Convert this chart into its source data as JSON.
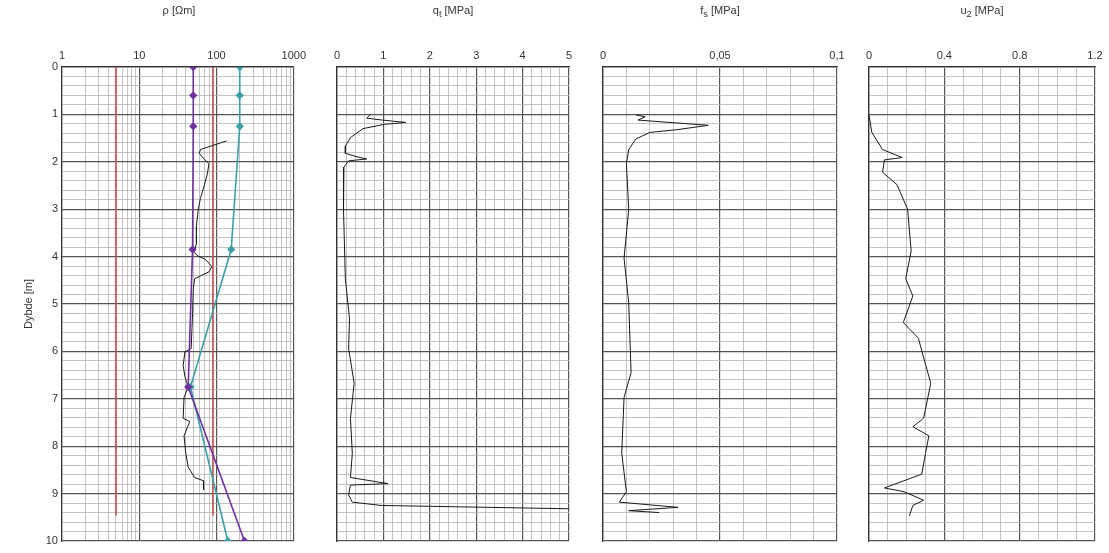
{
  "chart_data": [
    {
      "type": "line",
      "xlabel": "ρ [Ωm]",
      "ylabel": "Dybde [m]",
      "log": "x",
      "grid": true,
      "xlim": [
        1,
        1000
      ],
      "ylim": [
        10,
        0
      ],
      "xticks": [
        1,
        {
          "value": 2,
          "label": null
        },
        {
          "value": 3,
          "label": null
        },
        {
          "value": 4,
          "label": null
        },
        {
          "value": 5,
          "label": null
        },
        {
          "value": 6,
          "label": null
        },
        {
          "value": 7,
          "label": null
        },
        {
          "value": 8,
          "label": null
        },
        {
          "value": 9,
          "label": null
        },
        10,
        {
          "value": 20,
          "label": null
        },
        {
          "value": 30,
          "label": null
        },
        {
          "value": 40,
          "label": null
        },
        {
          "value": 50,
          "label": null
        },
        {
          "value": 60,
          "label": null
        },
        {
          "value": 70,
          "label": null
        },
        {
          "value": 80,
          "label": null
        },
        {
          "value": 90,
          "label": null
        },
        100,
        {
          "value": 200,
          "label": null
        },
        {
          "value": 300,
          "label": null
        },
        {
          "value": 400,
          "label": null
        },
        {
          "value": 500,
          "label": null
        },
        {
          "value": 600,
          "label": null
        },
        {
          "value": 700,
          "label": null
        },
        {
          "value": 800,
          "label": null
        },
        {
          "value": 900,
          "label": null
        },
        1000
      ],
      "yticks": [
        0,
        {
          "value": 0.2,
          "label": null
        },
        {
          "value": 0.4,
          "label": null
        },
        {
          "value": 0.6,
          "label": null
        },
        {
          "value": 0.8,
          "label": null
        },
        1,
        {
          "value": 1.2,
          "label": null
        },
        {
          "value": 1.4,
          "label": null
        },
        {
          "value": 1.6,
          "label": null
        },
        {
          "value": 1.8,
          "label": null
        },
        2,
        {
          "value": 2.2,
          "label": null
        },
        {
          "value": 2.4,
          "label": null
        },
        {
          "value": 2.6,
          "label": null
        },
        {
          "value": 2.8,
          "label": null
        },
        3,
        {
          "value": 3.2,
          "label": null
        },
        {
          "value": 3.4,
          "label": null
        },
        {
          "value": 3.6,
          "label": null
        },
        {
          "value": 3.8,
          "label": null
        },
        4,
        {
          "value": 4.2,
          "label": null
        },
        {
          "value": 4.4,
          "label": null
        },
        {
          "value": 4.6,
          "label": null
        },
        {
          "value": 4.8,
          "label": null
        },
        5,
        {
          "value": 5.2,
          "label": null
        },
        {
          "value": 5.4,
          "label": null
        },
        {
          "value": 5.6,
          "label": null
        },
        {
          "value": 5.8,
          "label": null
        },
        6,
        {
          "value": 6.2,
          "label": null
        },
        {
          "value": 6.4,
          "label": null
        },
        {
          "value": 6.6,
          "label": null
        },
        {
          "value": 6.8,
          "label": null
        },
        7,
        {
          "value": 7.2,
          "label": null
        },
        {
          "value": 7.4,
          "label": null
        },
        {
          "value": 7.6,
          "label": null
        },
        {
          "value": 7.8,
          "label": null
        },
        8,
        {
          "value": 8.2,
          "label": null
        },
        {
          "value": 8.4,
          "label": null
        },
        {
          "value": 8.6,
          "label": null
        },
        {
          "value": 8.8,
          "label": null
        },
        9,
        {
          "value": 9.2,
          "label": null
        },
        {
          "value": 9.4,
          "label": null
        },
        {
          "value": 9.6,
          "label": null
        },
        {
          "value": 9.8,
          "label": null
        },
        10
      ],
      "series": [
        {
          "color": "#c0504d",
          "marker": "none",
          "x": [
            5,
            5
          ],
          "values": [
            0,
            9.45
          ]
        },
        {
          "color": "#c0504d",
          "marker": "none",
          "x": [
            90,
            90
          ],
          "values": [
            0,
            9.45
          ]
        },
        {
          "color": "#1a1a1a",
          "marker": "none",
          "x": [
            135,
            62,
            60,
            68,
            80,
            76,
            68,
            62,
            58,
            55,
            55,
            51,
            58,
            72,
            87,
            80,
            65,
            52,
            50,
            49,
            47,
            39,
            37,
            39,
            43,
            38,
            37,
            45,
            38,
            40,
            43,
            52,
            68,
            68
          ],
          "values": [
            1.56,
            1.74,
            1.82,
            1.93,
            2.04,
            2.26,
            2.55,
            2.77,
            3.0,
            3.36,
            3.73,
            3.91,
            3.99,
            4.06,
            4.21,
            4.32,
            4.39,
            4.47,
            4.69,
            5.2,
            5.94,
            6.01,
            6.3,
            6.53,
            6.75,
            6.97,
            7.41,
            7.48,
            7.78,
            8.15,
            8.44,
            8.66,
            8.73,
            8.92
          ]
        },
        {
          "color": "#3a9fa8",
          "marker": "diamond",
          "x": [
            200,
            200,
            200,
            155,
            46,
            140
          ],
          "values": [
            0,
            0.6,
            1.25,
            3.85,
            6.75,
            10
          ]
        },
        {
          "color": "#7030a0",
          "marker": "diamond",
          "x": [
            50,
            50,
            50,
            49,
            43,
            230
          ],
          "values": [
            0,
            0.6,
            1.25,
            3.85,
            6.75,
            10
          ]
        }
      ]
    },
    {
      "type": "line",
      "xlabel": "q$_{t}$ [MPa]",
      "tick_labels": "x",
      "grid": true,
      "xlim": [
        0,
        5
      ],
      "ylim": [
        10,
        0
      ],
      "xticks": [
        0,
        {
          "value": 0.2,
          "label": null
        },
        {
          "value": 0.4,
          "label": null
        },
        {
          "value": 0.6,
          "label": null
        },
        {
          "value": 0.8,
          "label": null
        },
        1,
        {
          "value": 1.2,
          "label": null
        },
        {
          "value": 1.4,
          "label": null
        },
        {
          "value": 1.6,
          "label": null
        },
        {
          "value": 1.8,
          "label": null
        },
        2,
        {
          "value": 2.2,
          "label": null
        },
        {
          "value": 2.4,
          "label": null
        },
        {
          "value": 2.6,
          "label": null
        },
        {
          "value": 2.8,
          "label": null
        },
        3,
        {
          "value": 3.2,
          "label": null
        },
        {
          "value": 3.4,
          "label": null
        },
        {
          "value": 3.6,
          "label": null
        },
        {
          "value": 3.8,
          "label": null
        },
        4,
        {
          "value": 4.2,
          "label": null
        },
        {
          "value": 4.4,
          "label": null
        },
        {
          "value": 4.6,
          "label": null
        },
        {
          "value": 4.8,
          "label": null
        },
        5
      ],
      "yticks": [
        0,
        {
          "value": 0.2,
          "label": null
        },
        {
          "value": 0.4,
          "label": null
        },
        {
          "value": 0.6,
          "label": null
        },
        {
          "value": 0.8,
          "label": null
        },
        1,
        {
          "value": 1.2,
          "label": null
        },
        {
          "value": 1.4,
          "label": null
        },
        {
          "value": 1.6,
          "label": null
        },
        {
          "value": 1.8,
          "label": null
        },
        2,
        {
          "value": 2.2,
          "label": null
        },
        {
          "value": 2.4,
          "label": null
        },
        {
          "value": 2.6,
          "label": null
        },
        {
          "value": 2.8,
          "label": null
        },
        3,
        {
          "value": 3.2,
          "label": null
        },
        {
          "value": 3.4,
          "label": null
        },
        {
          "value": 3.6,
          "label": null
        },
        {
          "value": 3.8,
          "label": null
        },
        4,
        {
          "value": 4.2,
          "label": null
        },
        {
          "value": 4.4,
          "label": null
        },
        {
          "value": 4.6,
          "label": null
        },
        {
          "value": 4.8,
          "label": null
        },
        5,
        {
          "value": 5.2,
          "label": null
        },
        {
          "value": 5.4,
          "label": null
        },
        {
          "value": 5.6,
          "label": null
        },
        {
          "value": 5.8,
          "label": null
        },
        6,
        {
          "value": 6.2,
          "label": null
        },
        {
          "value": 6.4,
          "label": null
        },
        {
          "value": 6.6,
          "label": null
        },
        {
          "value": 6.8,
          "label": null
        },
        7,
        {
          "value": 7.2,
          "label": null
        },
        {
          "value": 7.4,
          "label": null
        },
        {
          "value": 7.6,
          "label": null
        },
        {
          "value": 7.8,
          "label": null
        },
        8,
        {
          "value": 8.2,
          "label": null
        },
        {
          "value": 8.4,
          "label": null
        },
        {
          "value": 8.6,
          "label": null
        },
        {
          "value": 8.8,
          "label": null
        },
        9,
        {
          "value": 9.2,
          "label": null
        },
        {
          "value": 9.4,
          "label": null
        },
        {
          "value": 9.6,
          "label": null
        },
        {
          "value": 9.8,
          "label": null
        },
        10
      ],
      "series": [
        {
          "color": "#1a1a1a",
          "marker": "none",
          "x": [
            0.72,
            0.64,
            0.98,
            1.48,
            1.02,
            0.56,
            0.29,
            0.18,
            0.18,
            0.41,
            0.64,
            0.25,
            0.15,
            0.14,
            0.18,
            0.27,
            0.25,
            0.37,
            0.29,
            0.33,
            0.29,
            1.1,
            0.29,
            0.25,
            0.33,
            0.95,
            5.0
          ],
          "values": [
            1.0,
            1.08,
            1.12,
            1.17,
            1.21,
            1.3,
            1.49,
            1.67,
            1.82,
            1.89,
            1.94,
            1.98,
            2.11,
            3.0,
            4.47,
            5.31,
            5.94,
            6.67,
            7.41,
            8.15,
            8.66,
            8.79,
            8.82,
            9.03,
            9.18,
            9.25,
            9.32
          ]
        }
      ]
    },
    {
      "type": "line",
      "xlabel": "f$_{s}$ [MPa]",
      "tick_labels": "x",
      "grid": true,
      "xlim": [
        0,
        0.1
      ],
      "ylim": [
        10,
        0
      ],
      "xticks": [
        0,
        {
          "value": 0.01,
          "label": null
        },
        {
          "value": 0.02,
          "label": null
        },
        {
          "value": 0.03,
          "label": null
        },
        {
          "value": 0.04,
          "label": null
        },
        {
          "value": 0.05,
          "label": "0,05"
        },
        {
          "value": 0.06,
          "label": null
        },
        {
          "value": 0.07,
          "label": null
        },
        {
          "value": 0.08,
          "label": null
        },
        {
          "value": 0.09,
          "label": null
        },
        {
          "value": 0.1,
          "label": "0,1"
        }
      ],
      "yticks": [
        0,
        {
          "value": 0.2,
          "label": null
        },
        {
          "value": 0.4,
          "label": null
        },
        {
          "value": 0.6,
          "label": null
        },
        {
          "value": 0.8,
          "label": null
        },
        1,
        {
          "value": 1.2,
          "label": null
        },
        {
          "value": 1.4,
          "label": null
        },
        {
          "value": 1.6,
          "label": null
        },
        {
          "value": 1.8,
          "label": null
        },
        2,
        {
          "value": 2.2,
          "label": null
        },
        {
          "value": 2.4,
          "label": null
        },
        {
          "value": 2.6,
          "label": null
        },
        {
          "value": 2.8,
          "label": null
        },
        3,
        {
          "value": 3.2,
          "label": null
        },
        {
          "value": 3.4,
          "label": null
        },
        {
          "value": 3.6,
          "label": null
        },
        {
          "value": 3.8,
          "label": null
        },
        4,
        {
          "value": 4.2,
          "label": null
        },
        {
          "value": 4.4,
          "label": null
        },
        {
          "value": 4.6,
          "label": null
        },
        {
          "value": 4.8,
          "label": null
        },
        5,
        {
          "value": 5.2,
          "label": null
        },
        {
          "value": 5.4,
          "label": null
        },
        {
          "value": 5.6,
          "label": null
        },
        {
          "value": 5.8,
          "label": null
        },
        6,
        {
          "value": 6.2,
          "label": null
        },
        {
          "value": 6.4,
          "label": null
        },
        {
          "value": 6.6,
          "label": null
        },
        {
          "value": 6.8,
          "label": null
        },
        7,
        {
          "value": 7.2,
          "label": null
        },
        {
          "value": 7.4,
          "label": null
        },
        {
          "value": 7.6,
          "label": null
        },
        {
          "value": 7.8,
          "label": null
        },
        8,
        {
          "value": 8.2,
          "label": null
        },
        {
          "value": 8.4,
          "label": null
        },
        {
          "value": 8.6,
          "label": null
        },
        {
          "value": 8.8,
          "label": null
        },
        9,
        {
          "value": 9.2,
          "label": null
        },
        {
          "value": 9.4,
          "label": null
        },
        {
          "value": 9.6,
          "label": null
        },
        {
          "value": 9.8,
          "label": null
        },
        10
      ],
      "series": [
        {
          "color": "#1a1a1a",
          "marker": "none",
          "x": [
            0.014,
            0.018,
            0.015,
            0.045,
            0.032,
            0.02,
            0.014,
            0.011,
            0.01,
            0.011,
            0.009,
            0.011,
            0.012,
            0.009,
            0.008,
            0.01,
            0.007,
            0.032,
            0.011,
            0.024
          ],
          "values": [
            1.01,
            1.05,
            1.12,
            1.23,
            1.32,
            1.38,
            1.52,
            1.74,
            2.04,
            3.0,
            4.03,
            4.98,
            6.45,
            6.97,
            8.15,
            8.96,
            9.18,
            9.29,
            9.36,
            9.4
          ]
        }
      ]
    },
    {
      "type": "line",
      "xlabel": "u$_{2}$ [MPa]",
      "tick_labels": "x",
      "grid": true,
      "xlim": [
        0,
        1.2
      ],
      "ylim": [
        10,
        0
      ],
      "xticks": [
        0,
        {
          "value": 0.1,
          "label": null
        },
        {
          "value": 0.2,
          "label": null
        },
        {
          "value": 0.3,
          "label": null
        },
        0.4,
        {
          "value": 0.5,
          "label": null
        },
        {
          "value": 0.6,
          "label": null
        },
        {
          "value": 0.7,
          "label": null
        },
        0.8,
        {
          "value": 0.9,
          "label": null
        },
        {
          "value": 1.0,
          "label": null
        },
        {
          "value": 1.1,
          "label": null
        },
        1.2
      ],
      "yticks": [
        0,
        {
          "value": 0.2,
          "label": null
        },
        {
          "value": 0.4,
          "label": null
        },
        {
          "value": 0.6,
          "label": null
        },
        {
          "value": 0.8,
          "label": null
        },
        1,
        {
          "value": 1.2,
          "label": null
        },
        {
          "value": 1.4,
          "label": null
        },
        {
          "value": 1.6,
          "label": null
        },
        {
          "value": 1.8,
          "label": null
        },
        2,
        {
          "value": 2.2,
          "label": null
        },
        {
          "value": 2.4,
          "label": null
        },
        {
          "value": 2.6,
          "label": null
        },
        {
          "value": 2.8,
          "label": null
        },
        3,
        {
          "value": 3.2,
          "label": null
        },
        {
          "value": 3.4,
          "label": null
        },
        {
          "value": 3.6,
          "label": null
        },
        {
          "value": 3.8,
          "label": null
        },
        4,
        {
          "value": 4.2,
          "label": null
        },
        {
          "value": 4.4,
          "label": null
        },
        {
          "value": 4.6,
          "label": null
        },
        {
          "value": 4.8,
          "label": null
        },
        5,
        {
          "value": 5.2,
          "label": null
        },
        {
          "value": 5.4,
          "label": null
        },
        {
          "value": 5.6,
          "label": null
        },
        {
          "value": 5.8,
          "label": null
        },
        6,
        {
          "value": 6.2,
          "label": null
        },
        {
          "value": 6.4,
          "label": null
        },
        {
          "value": 6.6,
          "label": null
        },
        {
          "value": 6.8,
          "label": null
        },
        7,
        {
          "value": 7.2,
          "label": null
        },
        {
          "value": 7.4,
          "label": null
        },
        {
          "value": 7.6,
          "label": null
        },
        {
          "value": 7.8,
          "label": null
        },
        8,
        {
          "value": 8.2,
          "label": null
        },
        {
          "value": 8.4,
          "label": null
        },
        {
          "value": 8.6,
          "label": null
        },
        {
          "value": 8.8,
          "label": null
        },
        9,
        {
          "value": 9.2,
          "label": null
        },
        {
          "value": 9.4,
          "label": null
        },
        {
          "value": 9.6,
          "label": null
        },
        {
          "value": 9.8,
          "label": null
        },
        10
      ],
      "series": [
        {
          "color": "#1a1a1a",
          "marker": "none",
          "x": [
            0.0,
            0.015,
            0.072,
            0.176,
            0.082,
            0.072,
            0.148,
            0.205,
            0.224,
            0.195,
            0.233,
            0.182,
            0.262,
            0.318,
            0.328,
            0.29,
            0.233,
            0.318,
            0.3,
            0.28,
            0.082,
            0.186,
            0.29,
            0.233,
            0.214
          ],
          "values": [
            1.01,
            1.38,
            1.74,
            1.91,
            1.96,
            2.22,
            2.48,
            3.0,
            3.88,
            4.47,
            4.83,
            5.39,
            5.72,
            6.53,
            6.67,
            7.41,
            7.59,
            7.78,
            8.15,
            8.59,
            8.88,
            8.96,
            9.14,
            9.25,
            9.47
          ]
        }
      ]
    }
  ]
}
